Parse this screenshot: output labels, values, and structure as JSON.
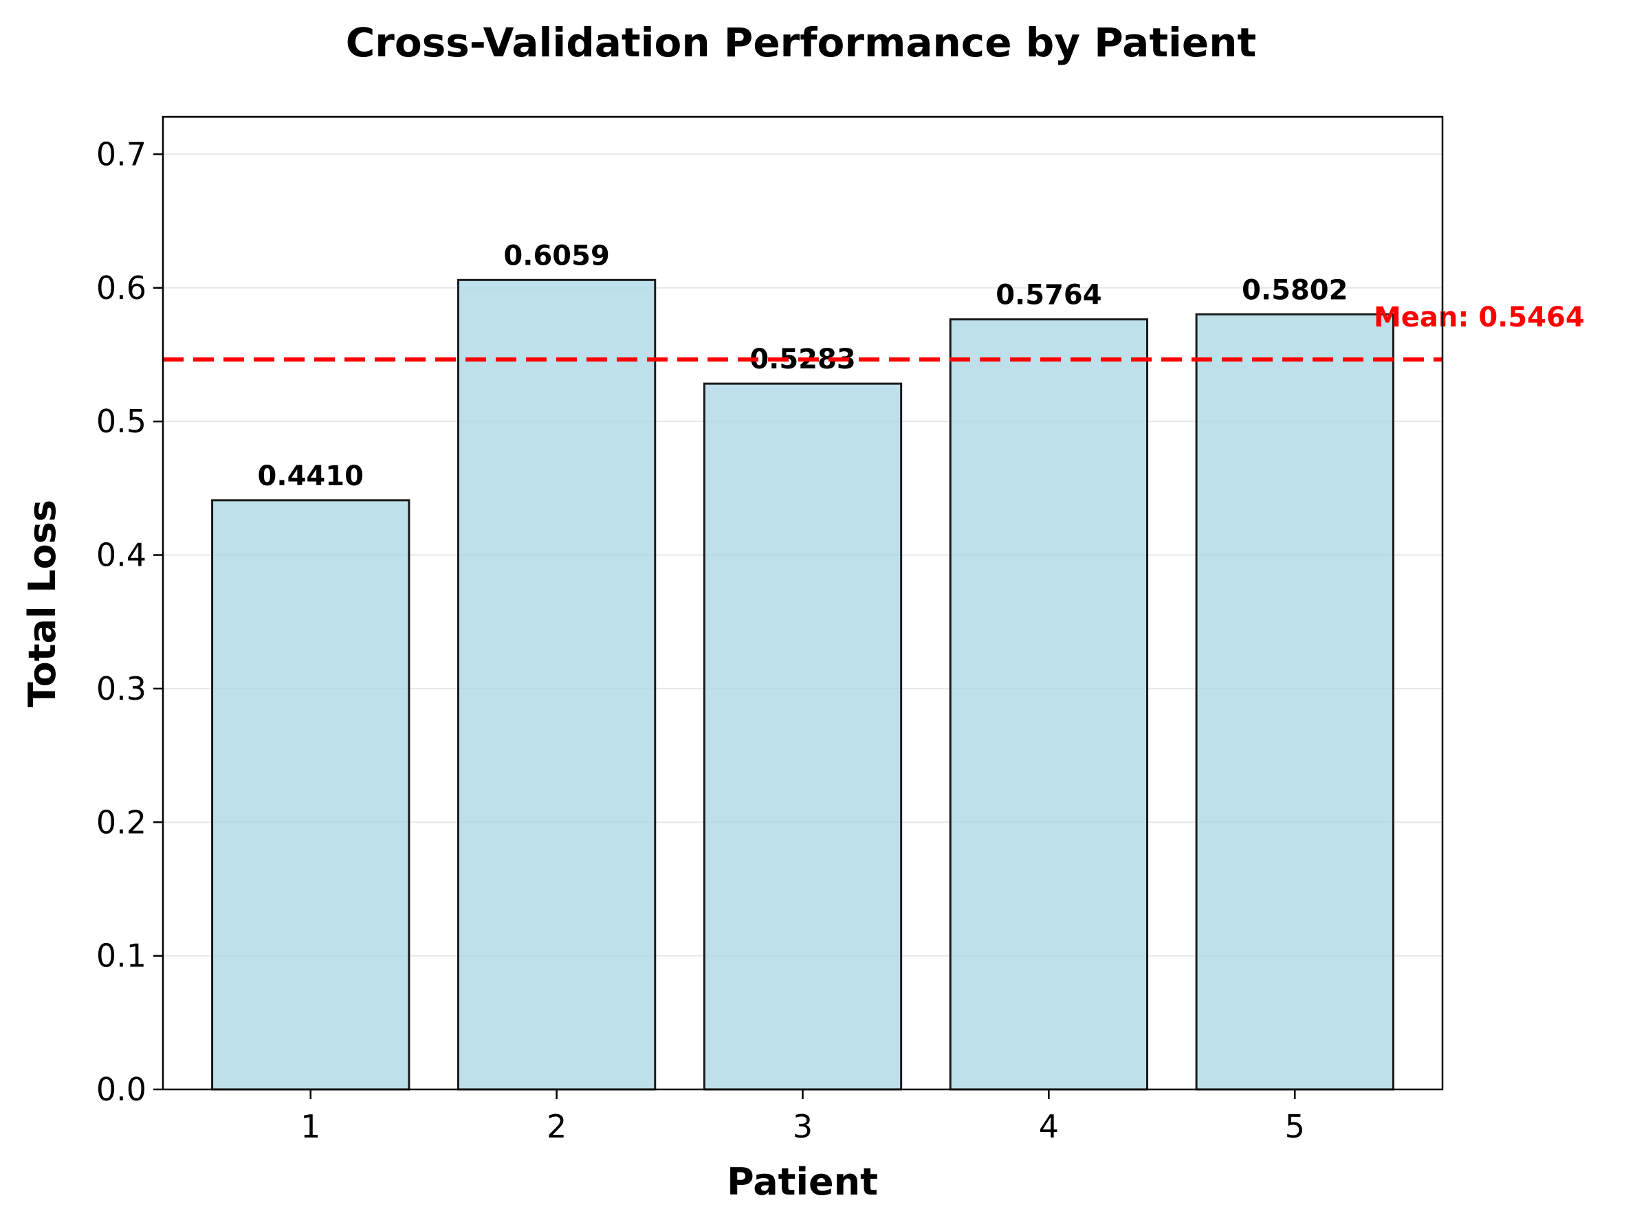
{
  "chart_data": {
    "type": "bar",
    "title": "Cross-Validation Performance by Patient",
    "xlabel": "Patient",
    "ylabel": "Total Loss",
    "categories": [
      "1",
      "2",
      "3",
      "4",
      "5"
    ],
    "values": [
      0.441,
      0.6059,
      0.5283,
      0.5764,
      0.5802
    ],
    "value_labels": [
      "0.4410",
      "0.6059",
      "0.5283",
      "0.5764",
      "0.5802"
    ],
    "ylim": [
      0,
      0.728
    ],
    "yticks": [
      0.0,
      0.1,
      0.2,
      0.3,
      0.4,
      0.5,
      0.6,
      0.7
    ],
    "ytick_labels": [
      "0.0",
      "0.1",
      "0.2",
      "0.3",
      "0.4",
      "0.5",
      "0.6",
      "0.7"
    ],
    "grid": "horizontal",
    "mean": {
      "value": 0.5464,
      "label": "Mean: 0.5464",
      "color": "#ff0000",
      "style": "dashed"
    },
    "bar_color": "#add8e6",
    "bar_edge_color": "#1a1a1a"
  }
}
